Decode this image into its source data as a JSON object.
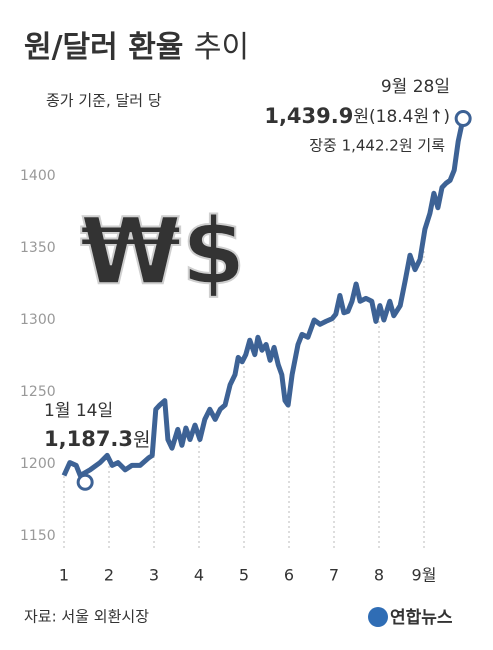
{
  "chart_data": {
    "type": "line",
    "title": {
      "bold": "원/달러 환율",
      "rest": "추이"
    },
    "subtitle": "종가 기준, 달러 당",
    "watermark": "₩$",
    "x": [
      1,
      1.13,
      1.27,
      1.36,
      1.58,
      1.8,
      1.96,
      2.07,
      2.2,
      2.36,
      2.51,
      2.69,
      2.87,
      2.96,
      3.04,
      3.13,
      3.24,
      3.31,
      3.4,
      3.53,
      3.62,
      3.71,
      3.8,
      3.91,
      4.02,
      4.13,
      4.24,
      4.36,
      4.47,
      4.58,
      4.69,
      4.8,
      4.87,
      4.96,
      5.04,
      5.13,
      5.24,
      5.31,
      5.4,
      5.49,
      5.58,
      5.67,
      5.76,
      5.84,
      5.91,
      5.98,
      6.07,
      6.2,
      6.29,
      6.42,
      6.56,
      6.69,
      6.82,
      6.96,
      7.04,
      7.13,
      7.22,
      7.31,
      7.4,
      7.49,
      7.58,
      7.71,
      7.84,
      7.93,
      8.02,
      8.11,
      8.24,
      8.33,
      8.47,
      8.58,
      8.69,
      8.8,
      8.91,
      9.02,
      9.13,
      9.22,
      9.31,
      9.4,
      9.49,
      9.58,
      9.67,
      9.76,
      9.87
    ],
    "series": [
      {
        "name": "원/달러 환율",
        "color": "#3d6295",
        "values": [
          1192,
          1201,
          1199,
          1192,
          1196,
          1201,
          1206,
          1199,
          1201,
          1196,
          1199,
          1199,
          1204,
          1206,
          1238,
          1241,
          1244,
          1217,
          1211,
          1224,
          1213,
          1225,
          1217,
          1227,
          1217,
          1231,
          1238,
          1231,
          1238,
          1241,
          1255,
          1262,
          1274,
          1271,
          1276,
          1286,
          1276,
          1288,
          1279,
          1283,
          1272,
          1281,
          1269,
          1262,
          1244,
          1241,
          1262,
          1283,
          1290,
          1288,
          1300,
          1297,
          1299,
          1301,
          1304,
          1317,
          1305,
          1306,
          1313,
          1325,
          1313,
          1315,
          1313,
          1299,
          1310,
          1300,
          1313,
          1303,
          1310,
          1327,
          1345,
          1335,
          1342,
          1363,
          1374,
          1388,
          1378,
          1392,
          1395,
          1397,
          1404,
          1424,
          1439.9
        ]
      }
    ],
    "xlim": [
      1,
      10
    ],
    "xticks": [
      1,
      2,
      3,
      4,
      5,
      6,
      7,
      8,
      {
        "value": 9,
        "label": "9월"
      }
    ],
    "ylim": [
      1135,
      1455
    ],
    "yticks": [
      1150,
      1200,
      1250,
      1300,
      1350,
      1400
    ],
    "annotations": [
      {
        "date": "1월 14일",
        "x": 1.47,
        "value": 1187.3,
        "label": "1,187.3",
        "unit": "원"
      },
      {
        "date": "9월 28일",
        "x": 9.87,
        "value": 1439.9,
        "label": "1,439.9",
        "unit": "원(18.4원↑)",
        "note": "장중 1,442.2원 기록"
      }
    ],
    "source": "자료: 서울 외환시장",
    "logo": "연합뉴스"
  }
}
